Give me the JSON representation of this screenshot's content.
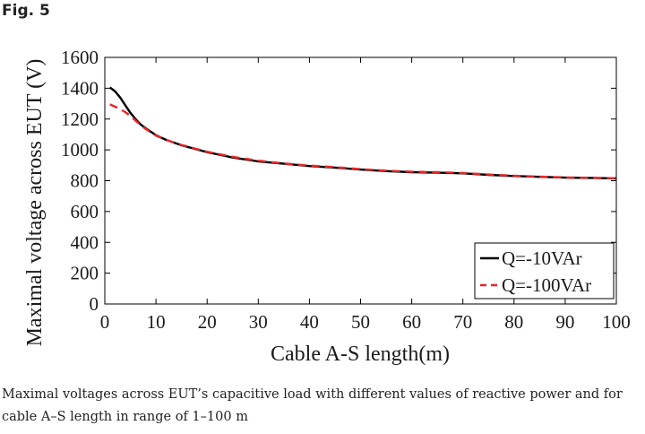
{
  "figure": {
    "label": "Fig. 5",
    "caption": "Maximal voltages across EUT’s capacitive load with different values of reactive power and for cable A–S length in range of 1–100 m"
  },
  "chart_data": {
    "type": "line",
    "xlabel": "Cable A-S length(m)",
    "ylabel": "Maximal voltage across EUT (V)",
    "xlim": [
      0,
      100
    ],
    "ylim": [
      0,
      1600
    ],
    "xticks": [
      "0",
      "10",
      "20",
      "30",
      "40",
      "50",
      "60",
      "70",
      "80",
      "90",
      "100"
    ],
    "yticks": [
      "0",
      "200",
      "400",
      "600",
      "800",
      "1000",
      "1200",
      "1400",
      "1600"
    ],
    "grid": false,
    "legend_position": "bottom-right",
    "series": [
      {
        "name": "Q=-10VAr",
        "color": "#000000",
        "style": "solid",
        "x": [
          1,
          2,
          3,
          4,
          5,
          6,
          7,
          8,
          10,
          12,
          15,
          20,
          25,
          30,
          35,
          40,
          45,
          50,
          55,
          60,
          65,
          70,
          75,
          80,
          85,
          90,
          95,
          100
        ],
        "y": [
          1405,
          1380,
          1340,
          1290,
          1240,
          1200,
          1165,
          1140,
          1095,
          1065,
          1030,
          985,
          950,
          925,
          910,
          895,
          885,
          872,
          862,
          855,
          852,
          848,
          838,
          830,
          825,
          820,
          818,
          815
        ]
      },
      {
        "name": "Q=-100VAr",
        "color": "#e8262a",
        "style": "dashed",
        "x": [
          1,
          2,
          3,
          4,
          5,
          6,
          7,
          8,
          10,
          12,
          15,
          20,
          25,
          30,
          35,
          40,
          45,
          50,
          55,
          60,
          65,
          70,
          75,
          80,
          85,
          90,
          95,
          100
        ],
        "y": [
          1295,
          1280,
          1265,
          1245,
          1220,
          1190,
          1160,
          1135,
          1092,
          1065,
          1032,
          988,
          955,
          930,
          912,
          898,
          888,
          875,
          865,
          858,
          855,
          850,
          840,
          832,
          826,
          821,
          819,
          816
        ]
      }
    ]
  }
}
